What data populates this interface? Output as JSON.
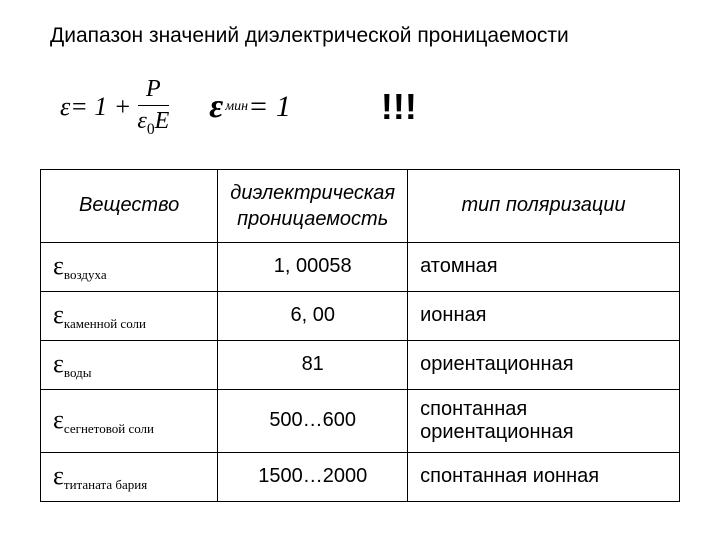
{
  "title": "Диапазон значений диэлектрической проницаемости",
  "formula1": {
    "lhs": "ε",
    "plus": " = 1 + ",
    "num": "P",
    "den_eps": "ε",
    "den_sub": "0",
    "den_E": "E"
  },
  "formula2": {
    "eps": "ε",
    "sub": "мин",
    "eq": " = 1"
  },
  "exclaim": "!!!",
  "table": {
    "headers": {
      "col1": "Вещество",
      "col2a": "диэлектрическая",
      "col2b": "проницаемость",
      "col3": "тип поляризации"
    },
    "rows": [
      {
        "eps": "ε",
        "material": "воздуха",
        "value": "1, 00058",
        "type": "атомная"
      },
      {
        "eps": "ε",
        "material": "каменной соли",
        "value": "6, 00",
        "type": "ионная"
      },
      {
        "eps": "ε",
        "material": "воды",
        "value": "81",
        "type": "ориентационная"
      },
      {
        "eps": "ε",
        "material": "сегнетовой соли",
        "value": "500…600",
        "type": "спонтанная ориентационная"
      },
      {
        "eps": "ε",
        "material": "титаната бария",
        "value": "1500…2000",
        "type": "спонтанная ионная"
      }
    ]
  },
  "style": {
    "background": "#ffffff",
    "text_color": "#000000",
    "border_color": "#000000",
    "title_fontsize": 21,
    "formula_fontsize": 26,
    "table_fontsize": 20
  }
}
